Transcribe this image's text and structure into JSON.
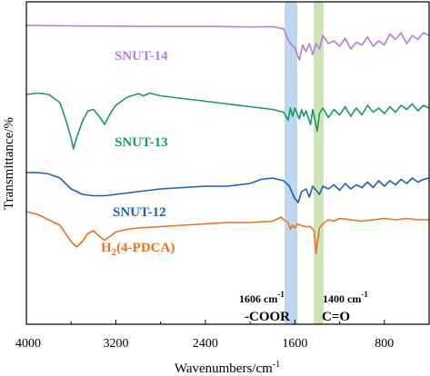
{
  "chart_data": {
    "type": "line",
    "title": "",
    "xlabel": "Wavenumbers/cm",
    "xlabel_sup": "-1",
    "ylabel": "Transmittance/%",
    "xlim": [
      4000,
      400
    ],
    "x_reversed": true,
    "x_ticks": [
      4000,
      3200,
      2400,
      1600,
      800
    ],
    "y_ticks_shown": false,
    "grid": false,
    "legend": "none (labels placed next to each trace)",
    "series": [
      {
        "name": "SNUT-14",
        "color": "#B57EDC",
        "points": [
          [
            4000,
            0.3
          ],
          [
            3600,
            0.5
          ],
          [
            3200,
            0.6
          ],
          [
            2800,
            0.7
          ],
          [
            2400,
            0.7
          ],
          [
            2000,
            0.9
          ],
          [
            1800,
            0.8
          ],
          [
            1700,
            1.6
          ],
          [
            1650,
            6.5
          ],
          [
            1600,
            8.5
          ],
          [
            1560,
            13.0
          ],
          [
            1530,
            7.5
          ],
          [
            1500,
            10.0
          ],
          [
            1470,
            7.0
          ],
          [
            1440,
            11.0
          ],
          [
            1410,
            7.0
          ],
          [
            1380,
            9.0
          ],
          [
            1350,
            4.0
          ],
          [
            1300,
            7.0
          ],
          [
            1250,
            6.0
          ],
          [
            1200,
            8.0
          ],
          [
            1150,
            5.0
          ],
          [
            1100,
            9.0
          ],
          [
            1050,
            6.5
          ],
          [
            1000,
            7.5
          ],
          [
            950,
            4.5
          ],
          [
            900,
            8.0
          ],
          [
            850,
            6.0
          ],
          [
            800,
            7.5
          ],
          [
            750,
            3.5
          ],
          [
            700,
            5.5
          ],
          [
            650,
            3.0
          ],
          [
            600,
            7.0
          ],
          [
            550,
            4.0
          ],
          [
            500,
            5.5
          ],
          [
            450,
            3.0
          ],
          [
            400,
            4.0
          ]
        ]
      },
      {
        "name": "SNUT-13",
        "color": "#1A9960",
        "points": [
          [
            4000,
            0.0
          ],
          [
            3900,
            -0.5
          ],
          [
            3800,
            0.0
          ],
          [
            3700,
            3.0
          ],
          [
            3650,
            9.0
          ],
          [
            3600,
            16.0
          ],
          [
            3580,
            20.0
          ],
          [
            3560,
            17.0
          ],
          [
            3500,
            10.0
          ],
          [
            3450,
            6.0
          ],
          [
            3400,
            5.5
          ],
          [
            3350,
            8.0
          ],
          [
            3300,
            11.0
          ],
          [
            3250,
            7.0
          ],
          [
            3200,
            4.0
          ],
          [
            3100,
            1.0
          ],
          [
            3000,
            -0.3
          ],
          [
            2950,
            0.5
          ],
          [
            2900,
            -0.5
          ],
          [
            2800,
            0.5
          ],
          [
            2600,
            1.5
          ],
          [
            2400,
            2.5
          ],
          [
            2200,
            3.5
          ],
          [
            2000,
            4.5
          ],
          [
            1800,
            5.5
          ],
          [
            1700,
            6.5
          ],
          [
            1660,
            9.5
          ],
          [
            1640,
            5.0
          ],
          [
            1620,
            8.0
          ],
          [
            1600,
            5.0
          ],
          [
            1560,
            9.0
          ],
          [
            1540,
            5.5
          ],
          [
            1520,
            8.0
          ],
          [
            1500,
            6.0
          ],
          [
            1460,
            11.0
          ],
          [
            1440,
            5.5
          ],
          [
            1420,
            9.5
          ],
          [
            1400,
            13.5
          ],
          [
            1380,
            7.0
          ],
          [
            1350,
            5.0
          ],
          [
            1300,
            8.5
          ],
          [
            1250,
            5.5
          ],
          [
            1200,
            7.5
          ],
          [
            1150,
            4.5
          ],
          [
            1100,
            8.0
          ],
          [
            1050,
            5.0
          ],
          [
            1000,
            7.5
          ],
          [
            950,
            4.0
          ],
          [
            900,
            6.5
          ],
          [
            850,
            5.0
          ],
          [
            800,
            7.0
          ],
          [
            750,
            4.5
          ],
          [
            700,
            6.5
          ],
          [
            650,
            4.0
          ],
          [
            600,
            5.5
          ],
          [
            550,
            3.5
          ],
          [
            500,
            6.0
          ],
          [
            450,
            4.0
          ],
          [
            400,
            5.0
          ]
        ]
      },
      {
        "name": "SNUT-12",
        "color": "#1F5DBF",
        "points": [
          [
            4000,
            0.0
          ],
          [
            3900,
            0.0
          ],
          [
            3800,
            0.5
          ],
          [
            3700,
            2.0
          ],
          [
            3600,
            6.0
          ],
          [
            3500,
            8.0
          ],
          [
            3400,
            8.5
          ],
          [
            3300,
            8.5
          ],
          [
            3200,
            8.0
          ],
          [
            3000,
            7.0
          ],
          [
            2800,
            6.0
          ],
          [
            2600,
            5.5
          ],
          [
            2400,
            5.0
          ],
          [
            2200,
            5.0
          ],
          [
            2000,
            4.0
          ],
          [
            1900,
            2.5
          ],
          [
            1800,
            2.0
          ],
          [
            1700,
            3.0
          ],
          [
            1650,
            5.0
          ],
          [
            1600,
            9.5
          ],
          [
            1570,
            11.0
          ],
          [
            1540,
            7.0
          ],
          [
            1500,
            6.0
          ],
          [
            1470,
            9.0
          ],
          [
            1440,
            5.0
          ],
          [
            1410,
            6.5
          ],
          [
            1380,
            8.0
          ],
          [
            1350,
            5.0
          ],
          [
            1300,
            6.0
          ],
          [
            1250,
            4.5
          ],
          [
            1200,
            6.5
          ],
          [
            1150,
            4.0
          ],
          [
            1100,
            6.0
          ],
          [
            1050,
            4.5
          ],
          [
            1000,
            5.5
          ],
          [
            950,
            3.5
          ],
          [
            900,
            5.5
          ],
          [
            850,
            3.0
          ],
          [
            800,
            5.0
          ],
          [
            750,
            3.0
          ],
          [
            700,
            4.5
          ],
          [
            650,
            2.5
          ],
          [
            600,
            4.0
          ],
          [
            550,
            2.0
          ],
          [
            500,
            3.5
          ],
          [
            450,
            2.5
          ],
          [
            400,
            2.0
          ]
        ]
      },
      {
        "name": "H₂(4-PDCA)",
        "color": "#E8731E",
        "points": [
          [
            4000,
            0.0
          ],
          [
            3900,
            1.0
          ],
          [
            3800,
            3.0
          ],
          [
            3700,
            5.0
          ],
          [
            3650,
            8.0
          ],
          [
            3600,
            11.0
          ],
          [
            3550,
            13.0
          ],
          [
            3500,
            11.0
          ],
          [
            3450,
            8.0
          ],
          [
            3400,
            7.0
          ],
          [
            3350,
            9.0
          ],
          [
            3300,
            10.5
          ],
          [
            3250,
            9.0
          ],
          [
            3200,
            7.5
          ],
          [
            3100,
            6.5
          ],
          [
            3000,
            6.0
          ],
          [
            2800,
            5.5
          ],
          [
            2600,
            5.0
          ],
          [
            2400,
            4.5
          ],
          [
            2200,
            4.0
          ],
          [
            2000,
            4.0
          ],
          [
            1800,
            3.5
          ],
          [
            1720,
            2.0
          ],
          [
            1700,
            3.0
          ],
          [
            1660,
            4.0
          ],
          [
            1640,
            6.5
          ],
          [
            1620,
            5.0
          ],
          [
            1600,
            6.0
          ],
          [
            1580,
            4.5
          ],
          [
            1550,
            5.0
          ],
          [
            1500,
            5.5
          ],
          [
            1460,
            5.5
          ],
          [
            1430,
            7.0
          ],
          [
            1420,
            10.0
          ],
          [
            1410,
            15.5
          ],
          [
            1400,
            12.0
          ],
          [
            1380,
            6.0
          ],
          [
            1350,
            4.5
          ],
          [
            1300,
            3.0
          ],
          [
            1250,
            3.5
          ],
          [
            1200,
            2.5
          ],
          [
            1100,
            3.0
          ],
          [
            1000,
            3.5
          ],
          [
            900,
            3.0
          ],
          [
            800,
            2.5
          ],
          [
            700,
            3.0
          ],
          [
            600,
            2.5
          ],
          [
            500,
            3.0
          ],
          [
            400,
            3.0
          ]
        ]
      }
    ],
    "labels": [
      {
        "text": "SNUT-14",
        "color": "#B57EDC"
      },
      {
        "text": "SNUT-13",
        "color": "#1A9960"
      },
      {
        "text": "SNUT-12",
        "color": "#1F5DBF"
      }
    ],
    "h2_label": {
      "pre": "H",
      "sub": "2",
      "post": "(4-PDCA)",
      "color": "#E8731E"
    },
    "bands": [
      {
        "label_value": "1606 cm",
        "label_sup": "-1",
        "group": "-COOR",
        "color": "#A8C8E8"
      },
      {
        "label_value": "1400 cm",
        "label_sup": "-1",
        "group": "C=O",
        "color": "#B9DC9C"
      }
    ]
  }
}
